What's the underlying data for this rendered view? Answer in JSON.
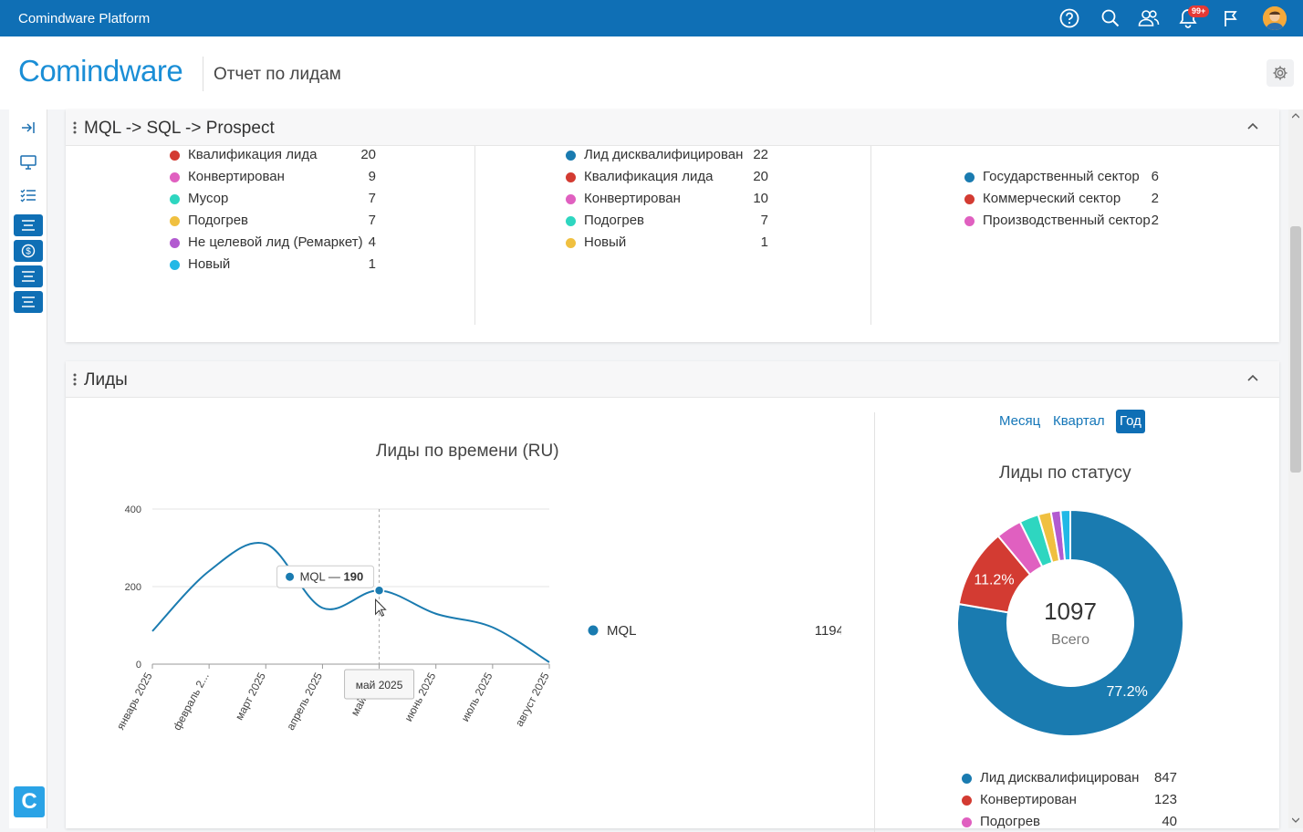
{
  "topbar": {
    "title": "Comindware Platform",
    "notif_badge": "99+",
    "icons": [
      "help-icon",
      "search-icon",
      "users-icon",
      "bell-icon",
      "flag-icon",
      "avatar"
    ]
  },
  "header": {
    "logo": "Comindware",
    "page_title": "Отчет по лидам"
  },
  "panels": {
    "mql": {
      "title": "MQL -> SQL -> Prospect",
      "col1": [
        {
          "label": "Квалификация лида",
          "value": "20",
          "color": "#d33b32"
        },
        {
          "label": "Конвертирован",
          "value": "9",
          "color": "#e060c0"
        },
        {
          "label": "Мусор",
          "value": "7",
          "color": "#2ed6c0"
        },
        {
          "label": "Подогрев",
          "value": "7",
          "color": "#f0c040"
        },
        {
          "label": "Не целевой лид (Ремаркет)",
          "value": "4",
          "color": "#b25ad0"
        },
        {
          "label": "Новый",
          "value": "1",
          "color": "#22b8e6"
        }
      ],
      "col2": [
        {
          "label": "Лид дисквалифицирован",
          "value": "22",
          "color": "#1a7bb0"
        },
        {
          "label": "Квалификация лида",
          "value": "20",
          "color": "#d33b32"
        },
        {
          "label": "Конвертирован",
          "value": "10",
          "color": "#e060c0"
        },
        {
          "label": "Подогрев",
          "value": "7",
          "color": "#2ed6c0"
        },
        {
          "label": "Новый",
          "value": "1",
          "color": "#f0c040"
        }
      ],
      "col3": [
        {
          "label": "Государственный сектор",
          "value": "6",
          "color": "#1a7bb0"
        },
        {
          "label": "Коммерческий сектор",
          "value": "2",
          "color": "#d33b32"
        },
        {
          "label": "Производственный сектор",
          "value": "2",
          "color": "#e060c0"
        }
      ]
    },
    "leads": {
      "title": "Лиды",
      "periods": [
        "Месяц",
        "Квартал",
        "Год"
      ],
      "active_period": "Год"
    }
  },
  "chart_data": [
    {
      "type": "line",
      "title": "Лиды по времени (RU)",
      "categories": [
        "январь 2025",
        "февраль 2...",
        "март 2025",
        "апрель 2025",
        "май 2025",
        "июнь 2025",
        "июль 2025",
        "август 2025"
      ],
      "series": [
        {
          "name": "MQL",
          "values": [
            85,
            240,
            310,
            145,
            190,
            130,
            95,
            5
          ],
          "color": "#1a7bb0"
        }
      ],
      "ylim": [
        0,
        400
      ],
      "yticks": [
        0,
        200,
        400
      ],
      "legend_total": "1194",
      "tooltip": {
        "series": "MQL",
        "value": "190",
        "category": "май 2025"
      },
      "grid": true
    },
    {
      "type": "pie",
      "title": "Лиды по статусу",
      "total": "1097",
      "total_label": "Всего",
      "slices": [
        {
          "label": "Лид дисквалифицирован",
          "value": 847,
          "color": "#1a7bb0",
          "pct_label": "77.2%"
        },
        {
          "label": "Конвертирован",
          "value": 123,
          "color": "#d33b32",
          "pct_label": "11.2%"
        },
        {
          "label": "Подогрев",
          "value": 40,
          "color": "#e060c0",
          "pct_label": ""
        },
        {
          "label": "",
          "value": 30,
          "color": "#2ed6c0",
          "pct_label": ""
        },
        {
          "label": "",
          "value": 20,
          "color": "#f0c040",
          "pct_label": ""
        },
        {
          "label": "",
          "value": 15,
          "color": "#b25ad0",
          "pct_label": ""
        },
        {
          "label": "",
          "value": 15,
          "color": "#22b8e6",
          "pct_label": ""
        }
      ],
      "legend_visible": [
        {
          "label": "Лид дисквалифицирован",
          "value": "847",
          "color": "#1a7bb0"
        },
        {
          "label": "Конвертирован",
          "value": "123",
          "color": "#d33b32"
        },
        {
          "label": "Подогрев",
          "value": "40",
          "color": "#e060c0"
        }
      ]
    }
  ]
}
